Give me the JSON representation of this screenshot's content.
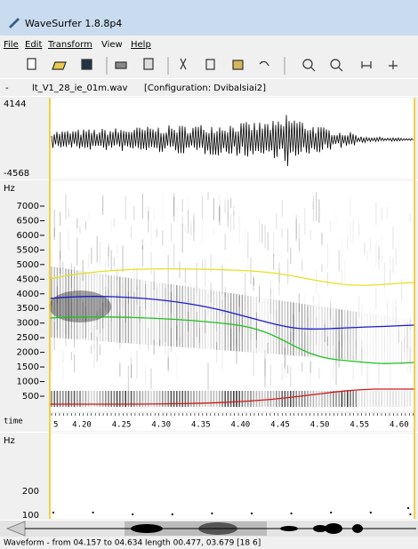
{
  "window": {
    "title": "WaveSurfer 1.8.8p4"
  },
  "menu": [
    "File",
    "Edit",
    "Transform",
    "View",
    "Help"
  ],
  "file_bar": {
    "dash": "-",
    "filename": "lt_V1_28_ie_01m.wav",
    "configuration": "[Configuration: Dvibalsiai2]"
  },
  "waveform": {
    "max": "4144",
    "min": "-4568"
  },
  "spectrogram": {
    "unit": "Hz",
    "labels": [
      "7000",
      "6500",
      "6000",
      "5500",
      "5000",
      "4500",
      "4000",
      "3500",
      "3000",
      "2500",
      "2000",
      "1500",
      "1000",
      "500"
    ]
  },
  "time_axis": {
    "label": "time",
    "labels": [
      "5",
      "4.20",
      "4.25",
      "4.30",
      "4.35",
      "4.40",
      "4.45",
      "4.50",
      "4.55",
      "4.60"
    ]
  },
  "pitch": {
    "unit": "Hz",
    "labels": [
      "200",
      "100"
    ]
  },
  "status": "Waveform - from 04.157 to 04.634 length 00.477, 03.679 [18 6]"
}
